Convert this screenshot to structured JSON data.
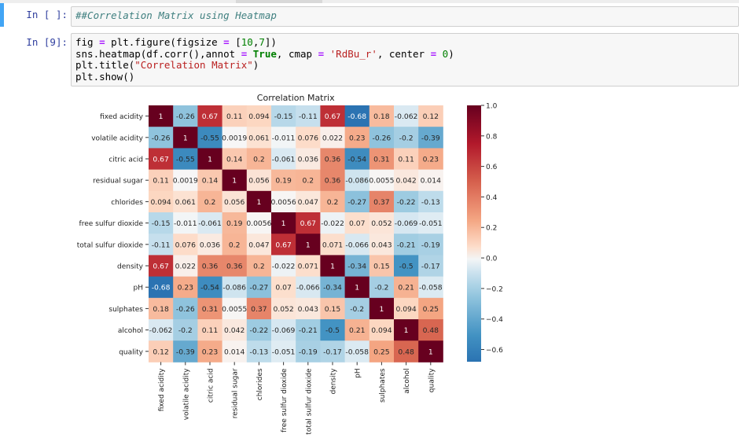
{
  "cells": [
    {
      "prompt": "In [ ]:",
      "code_comment": "##Correlation Matrix using Heatmap"
    },
    {
      "prompt": "In [9]:",
      "code_lines": [
        {
          "parts": [
            [
              "",
              "fig "
            ],
            [
              "op",
              "="
            ],
            [
              "",
              " plt.figure(figsize "
            ],
            [
              "op",
              "="
            ],
            [
              "",
              " ["
            ],
            [
              "nu",
              "10"
            ],
            [
              "",
              ","
            ],
            [
              "nu",
              "7"
            ],
            [
              "",
              "])"
            ]
          ]
        },
        {
          "parts": [
            [
              "",
              "sns.heatmap(df.corr(),annot "
            ],
            [
              "op",
              "="
            ],
            [
              "",
              " "
            ],
            [
              "kw",
              "True"
            ],
            [
              "",
              ", cmap "
            ],
            [
              "op",
              "="
            ],
            [
              "",
              " "
            ],
            [
              "st",
              "'RdBu_r'"
            ],
            [
              "",
              ", center "
            ],
            [
              "op",
              "="
            ],
            [
              "",
              " "
            ],
            [
              "nu",
              "0"
            ],
            [
              "",
              ")"
            ]
          ]
        },
        {
          "parts": [
            [
              "",
              "plt.title("
            ],
            [
              "st",
              "\"Correlation Matrix\""
            ],
            [
              "",
              ")"
            ]
          ]
        },
        {
          "parts": [
            [
              "",
              "plt.show()"
            ]
          ]
        }
      ]
    }
  ],
  "chart_data": {
    "type": "heatmap",
    "title": "Correlation Matrix",
    "labels": [
      "fixed acidity",
      "volatile acidity",
      "citric acid",
      "residual sugar",
      "chlorides",
      "free sulfur dioxide",
      "total sulfur dioxide",
      "density",
      "pH",
      "sulphates",
      "alcohol",
      "quality"
    ],
    "annotations": [
      [
        "1",
        "-0.26",
        "0.67",
        "0.11",
        "0.094",
        "-0.15",
        "-0.11",
        "0.67",
        "-0.68",
        "0.18",
        "-0.062",
        "0.12"
      ],
      [
        "-0.26",
        "1",
        "-0.55",
        "0.0019",
        "0.061",
        "-0.011",
        "0.076",
        "0.022",
        "0.23",
        "-0.26",
        "-0.2",
        "-0.39"
      ],
      [
        "0.67",
        "-0.55",
        "1",
        "0.14",
        "0.2",
        "-0.061",
        "0.036",
        "0.36",
        "-0.54",
        "0.31",
        "0.11",
        "0.23"
      ],
      [
        "0.11",
        "0.0019",
        "0.14",
        "1",
        "0.056",
        "0.19",
        "0.2",
        "0.36",
        "-0.086",
        "0.0055",
        "0.042",
        "0.014"
      ],
      [
        "0.094",
        "0.061",
        "0.2",
        "0.056",
        "1",
        "0.0056",
        "0.047",
        "0.2",
        "-0.27",
        "0.37",
        "-0.22",
        "-0.13"
      ],
      [
        "-0.15",
        "-0.011",
        "-0.061",
        "0.19",
        "0.0056",
        "1",
        "0.67",
        "-0.022",
        "0.07",
        "0.052",
        "-0.069",
        "-0.051"
      ],
      [
        "-0.11",
        "0.076",
        "0.036",
        "0.2",
        "0.047",
        "0.67",
        "1",
        "0.071",
        "-0.066",
        "0.043",
        "-0.21",
        "-0.19"
      ],
      [
        "0.67",
        "0.022",
        "0.36",
        "0.36",
        "0.2",
        "-0.022",
        "0.071",
        "1",
        "-0.34",
        "0.15",
        "-0.5",
        "-0.17"
      ],
      [
        "-0.68",
        "0.23",
        "-0.54",
        "-0.086",
        "-0.27",
        "0.07",
        "-0.066",
        "-0.34",
        "1",
        "-0.2",
        "0.21",
        "-0.058"
      ],
      [
        "0.18",
        "-0.26",
        "0.31",
        "0.0055",
        "0.37",
        "0.052",
        "0.043",
        "0.15",
        "-0.2",
        "1",
        "0.094",
        "0.25"
      ],
      [
        "-0.062",
        "-0.2",
        "0.11",
        "0.042",
        "-0.22",
        "-0.069",
        "-0.21",
        "-0.5",
        "0.21",
        "0.094",
        "1",
        "0.48"
      ],
      [
        "0.12",
        "-0.39",
        "0.23",
        "0.014",
        "-0.13",
        "-0.051",
        "-0.19",
        "-0.17",
        "-0.058",
        "0.25",
        "0.48",
        "1"
      ]
    ],
    "colorbar": {
      "vmin": -0.68,
      "vmax": 1.0,
      "center": 0,
      "ticks": [
        "1.0",
        "0.8",
        "0.6",
        "0.4",
        "0.2",
        "0.0",
        "-0.2",
        "-0.4",
        "-0.6"
      ],
      "cmap": "RdBu_r"
    },
    "colors": {
      "low": "#2166ac",
      "mid": "#f7f7f7",
      "high": "#67001f"
    }
  }
}
